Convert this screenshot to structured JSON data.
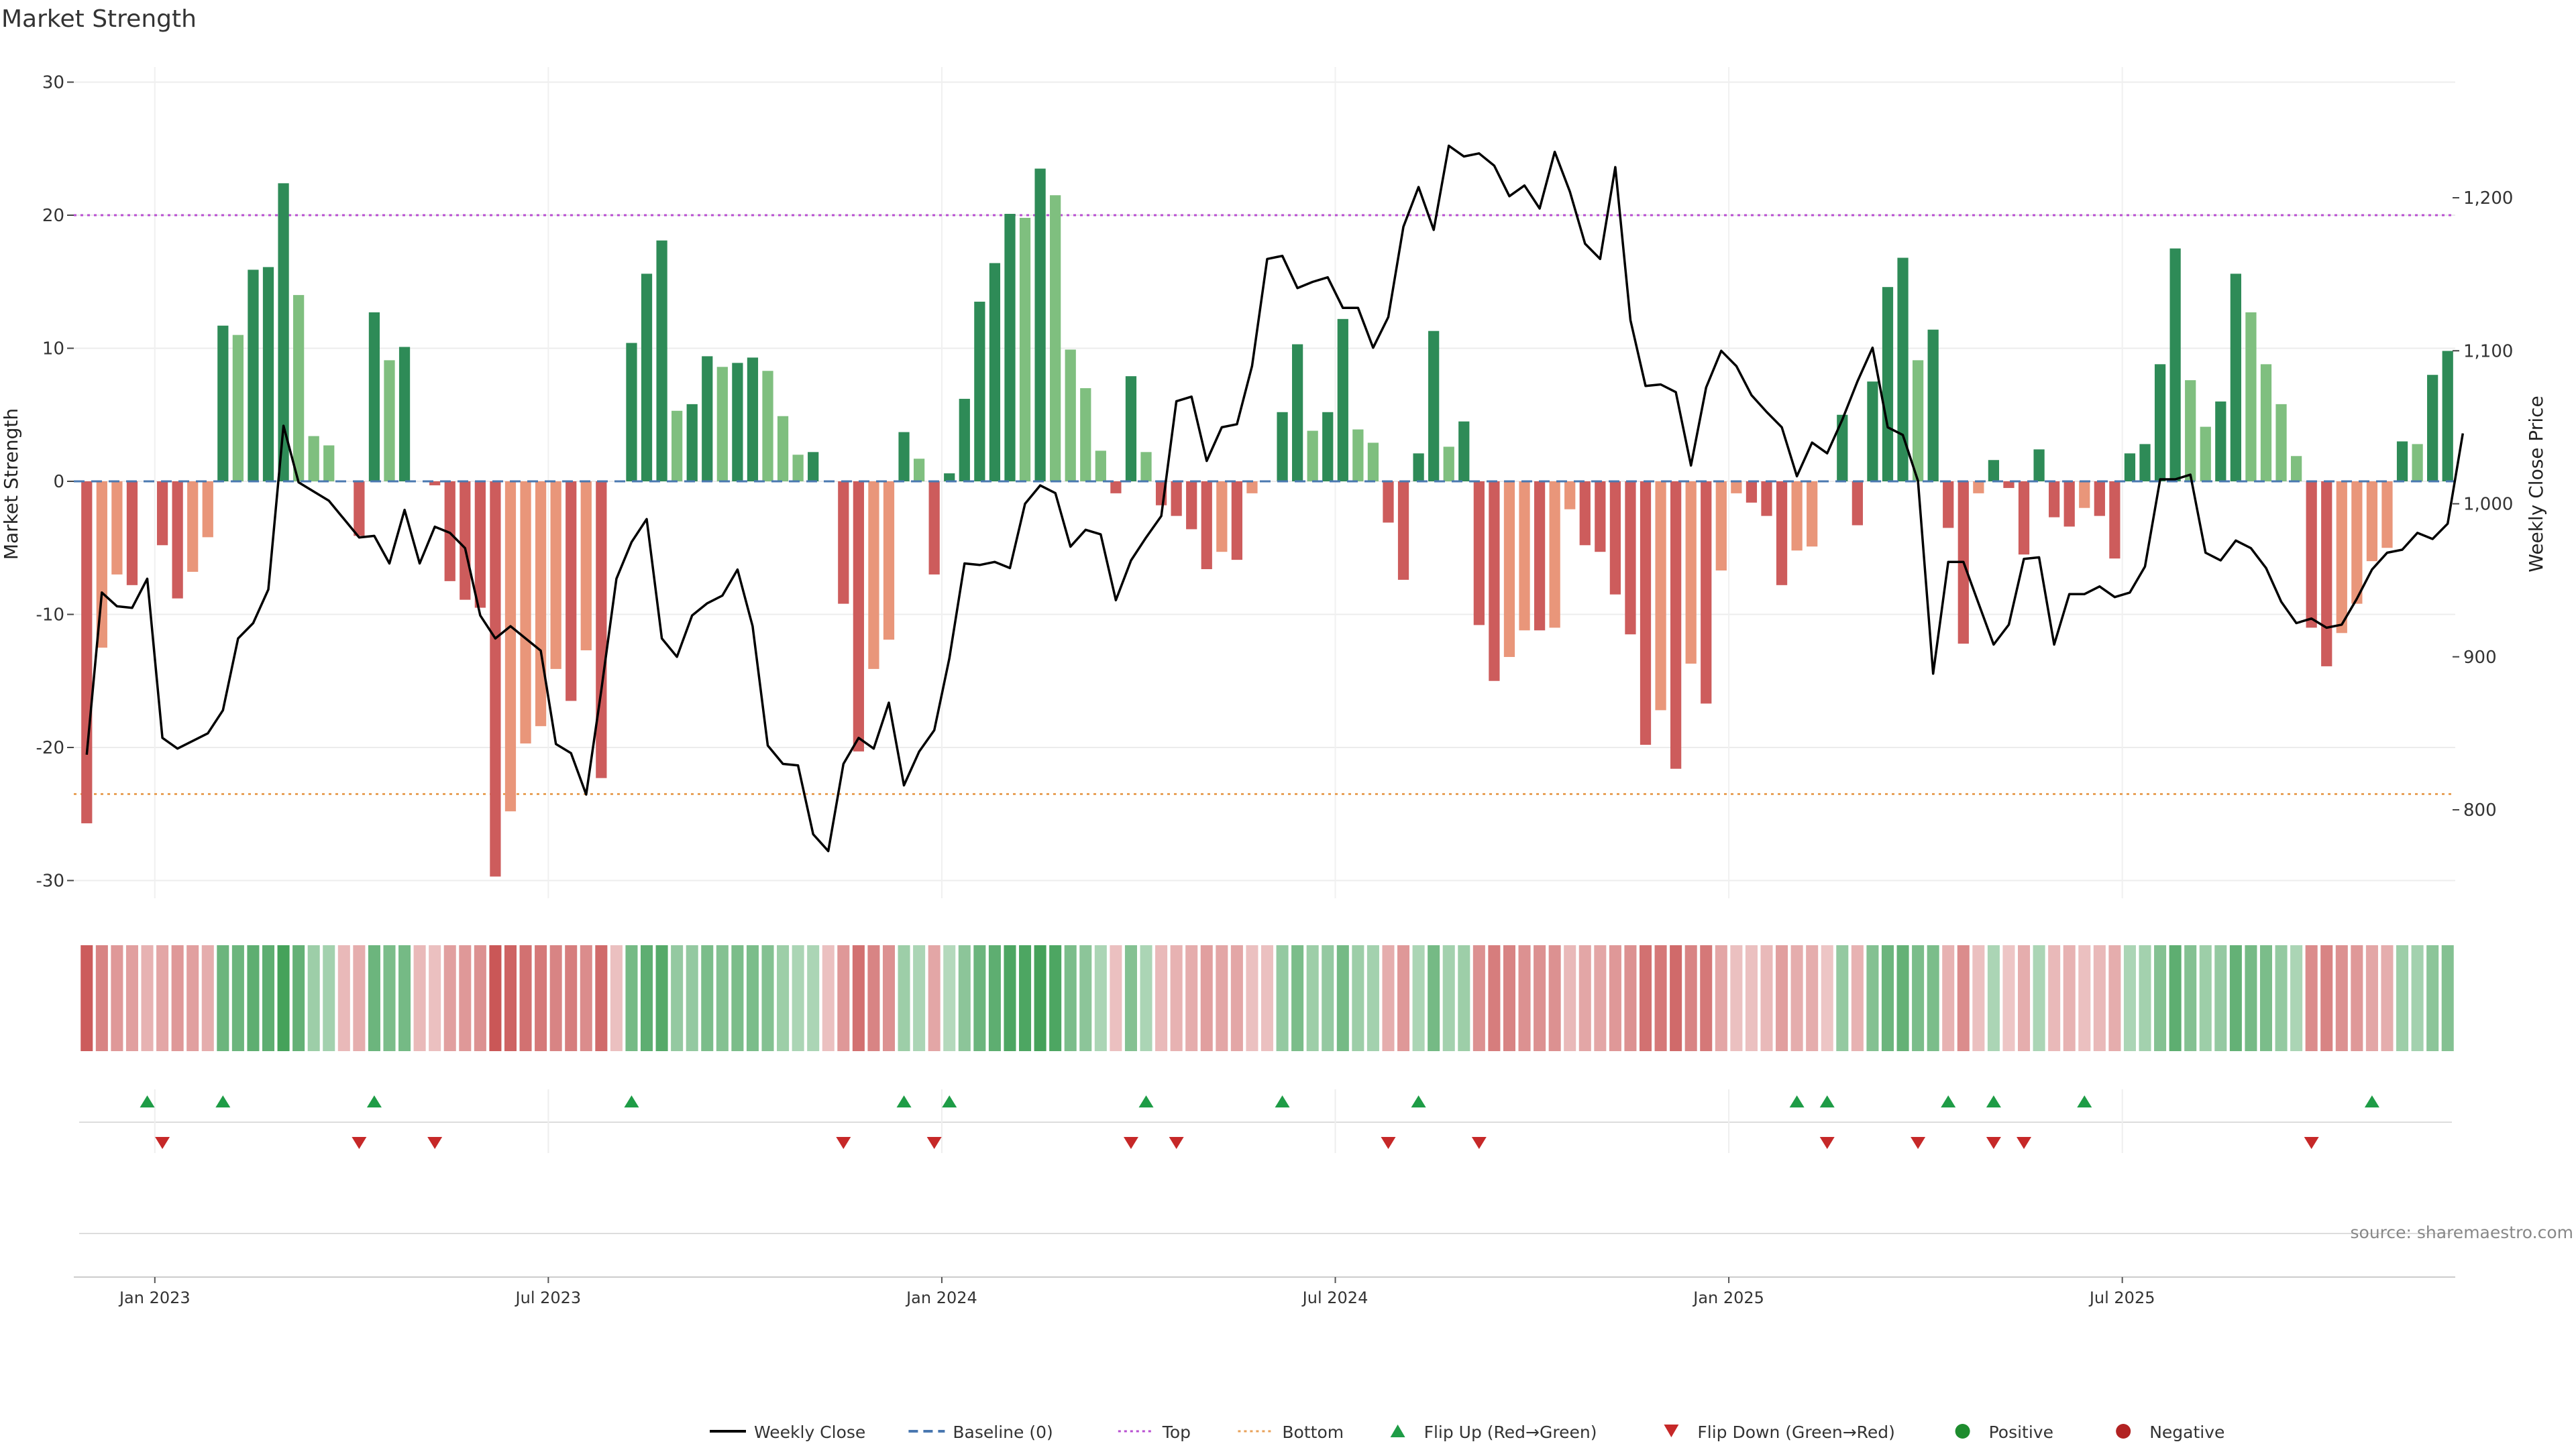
{
  "chart_data": {
    "type": "bar",
    "title": "Market Strength",
    "ylabel_left": "Market Strength",
    "ylabel_right": "Weekly Close Price",
    "source": "source: sharemaestro.com",
    "ylim_left": [
      -33,
      33
    ],
    "yticks_left": [
      30,
      20,
      10,
      0,
      -10,
      -20,
      -30
    ],
    "ylim_right": [
      740,
      1296
    ],
    "yticks_right": [
      {
        "value": 1200,
        "label": "1,200"
      },
      {
        "value": 1100,
        "label": "1,100"
      },
      {
        "value": 1000,
        "label": "1,000"
      },
      {
        "value": 900,
        "label": "900"
      },
      {
        "value": 800,
        "label": "800"
      }
    ],
    "x_start_index_date": "2022-11-28",
    "xticks": [
      {
        "index": 5,
        "label": "Jan 2023"
      },
      {
        "index": 31,
        "label": "Jul 2023"
      },
      {
        "index": 57,
        "label": "Jan 2024"
      },
      {
        "index": 83,
        "label": "Jul 2024"
      },
      {
        "index": 109,
        "label": "Jan 2025"
      },
      {
        "index": 135,
        "label": "Jul 2025"
      }
    ],
    "top_threshold": 20,
    "bottom_threshold": -23.5,
    "strength": [
      -25.7,
      -12.5,
      -7,
      -7.8,
      0,
      -4.8,
      -8.8,
      -6.8,
      -4.2,
      11.7,
      11,
      15.9,
      16.1,
      22.4,
      14,
      3.4,
      2.7,
      0,
      -4.1,
      12.7,
      9.1,
      10.1,
      0,
      -0.3,
      -7.5,
      -8.9,
      -9.5,
      -29.7,
      -24.8,
      -19.7,
      -18.4,
      -14.1,
      -16.5,
      -12.7,
      -22.3,
      0,
      10.4,
      15.6,
      18.1,
      5.3,
      5.8,
      9.4,
      8.6,
      8.9,
      9.3,
      8.3,
      4.9,
      2,
      2.2,
      0,
      -9.2,
      -20.3,
      -14.1,
      -11.9,
      3.7,
      1.7,
      -7,
      0.6,
      6.2,
      13.5,
      16.4,
      20.1,
      19.8,
      23.5,
      21.5,
      9.9,
      7,
      2.3,
      -0.9,
      7.9,
      2.2,
      -1.8,
      -2.6,
      -3.6,
      -6.6,
      -5.3,
      -5.9,
      -0.9,
      0,
      5.2,
      10.3,
      3.8,
      5.2,
      12.2,
      3.9,
      2.9,
      -3.1,
      -7.4,
      2.1,
      11.3,
      2.6,
      4.5,
      -10.8,
      -15,
      -13.2,
      -11.2,
      -11.2,
      -11,
      -2.1,
      -4.8,
      -5.3,
      -8.5,
      -11.5,
      -19.8,
      -17.2,
      -21.6,
      -13.7,
      -16.7,
      -6.7,
      -0.9,
      -1.6,
      -2.6,
      -7.8,
      -5.2,
      -4.9,
      0,
      5,
      -3.3,
      7.5,
      14.6,
      16.8,
      9.1,
      11.4,
      -3.5,
      -12.2,
      -0.9,
      1.6,
      -0.5,
      -5.5,
      2.4,
      -2.7,
      -3.4,
      -2,
      -2.6,
      -5.8,
      2.1,
      2.8,
      8.8,
      17.5,
      7.6,
      4.1,
      6,
      15.6,
      12.7,
      8.8,
      5.8,
      1.9,
      -11,
      -13.9,
      -11.4,
      -9.2,
      -6,
      -5,
      3,
      2.8,
      8,
      9.8
    ],
    "close": [
      836,
      942,
      933,
      932,
      951,
      847,
      840,
      845,
      850,
      865,
      912,
      922,
      944,
      1051,
      1014,
      1008,
      1002,
      990,
      978,
      979,
      961,
      996,
      961,
      985,
      981,
      971,
      927,
      912,
      920,
      912,
      904,
      843,
      837,
      810,
      878,
      951,
      975,
      990,
      912,
      900,
      927,
      935,
      940,
      957,
      920,
      842,
      830,
      829,
      784,
      773,
      830,
      847,
      840,
      870,
      816,
      838,
      852,
      899,
      961,
      960,
      962,
      958,
      1000,
      1012,
      1007,
      972,
      983,
      980,
      937,
      963,
      978,
      992,
      1067,
      1070,
      1028,
      1050,
      1052,
      1090,
      1160,
      1162,
      1141,
      1145,
      1148,
      1128,
      1128,
      1102,
      1122,
      1181,
      1207,
      1179,
      1234,
      1227,
      1229,
      1221,
      1201,
      1208,
      1193,
      1230,
      1204,
      1170,
      1160,
      1220,
      1120,
      1077,
      1078,
      1073,
      1025,
      1076,
      1100,
      1090,
      1071,
      1060,
      1050,
      1018,
      1040,
      1033,
      1055,
      1080,
      1102,
      1050,
      1045,
      1015,
      889,
      962,
      962,
      935,
      908,
      921,
      964,
      965,
      908,
      941,
      941,
      946,
      939,
      942,
      959,
      1016,
      1016,
      1019,
      968,
      963,
      976,
      971,
      958,
      936,
      922,
      925,
      919,
      921,
      938,
      957,
      968,
      970,
      981,
      977,
      987,
      1046
    ],
    "heat_intensity": [
      0.9,
      0.6,
      0.45,
      0.4,
      0.25,
      0.35,
      0.45,
      0.4,
      0.3,
      0.6,
      0.6,
      0.7,
      0.7,
      0.85,
      0.65,
      0.3,
      0.25,
      0.2,
      0.3,
      0.6,
      0.5,
      0.55,
      0.2,
      0.15,
      0.4,
      0.45,
      0.5,
      0.95,
      0.85,
      0.75,
      0.7,
      0.6,
      0.65,
      0.55,
      0.8,
      0.15,
      0.55,
      0.7,
      0.75,
      0.35,
      0.35,
      0.5,
      0.45,
      0.5,
      0.5,
      0.45,
      0.3,
      0.2,
      0.2,
      0.15,
      0.45,
      0.75,
      0.6,
      0.5,
      0.3,
      0.2,
      0.35,
      0.15,
      0.4,
      0.6,
      0.7,
      0.8,
      0.8,
      0.85,
      0.8,
      0.5,
      0.4,
      0.2,
      0.15,
      0.45,
      0.2,
      0.2,
      0.25,
      0.3,
      0.4,
      0.35,
      0.35,
      0.15,
      0.15,
      0.35,
      0.5,
      0.3,
      0.35,
      0.55,
      0.3,
      0.25,
      0.3,
      0.45,
      0.2,
      0.55,
      0.25,
      0.3,
      0.5,
      0.65,
      0.6,
      0.5,
      0.5,
      0.5,
      0.2,
      0.35,
      0.35,
      0.45,
      0.5,
      0.75,
      0.7,
      0.8,
      0.6,
      0.7,
      0.35,
      0.15,
      0.15,
      0.2,
      0.4,
      0.3,
      0.3,
      0.1,
      0.35,
      0.25,
      0.45,
      0.6,
      0.65,
      0.5,
      0.5,
      0.25,
      0.55,
      0.15,
      0.2,
      0.1,
      0.3,
      0.2,
      0.2,
      0.25,
      0.15,
      0.2,
      0.3,
      0.2,
      0.25,
      0.45,
      0.7,
      0.45,
      0.3,
      0.35,
      0.65,
      0.55,
      0.5,
      0.35,
      0.2,
      0.55,
      0.6,
      0.5,
      0.45,
      0.35,
      0.3,
      0.3,
      0.25,
      0.4,
      0.45
    ],
    "flip_up_indices": [
      4,
      9,
      19,
      36,
      54,
      57,
      70,
      79,
      88,
      113,
      115,
      123,
      126,
      132,
      151
    ],
    "flip_down_indices": [
      5,
      18,
      23,
      50,
      56,
      69,
      72,
      86,
      92,
      115,
      121,
      126,
      128,
      147
    ],
    "colors": {
      "strong_green": "#2e8b57",
      "light_green": "#7fbf7f",
      "strong_red": "#cd5c5c",
      "light_red": "#e9967a",
      "line": "#000000",
      "top": "#b84fd1",
      "bottom": "#e8a25a",
      "baseline": "#4a78b0",
      "flip_up": "#1e9c46",
      "flip_down": "#c62828",
      "positive": "#1e8c2e",
      "negative": "#b22222"
    },
    "legend": [
      {
        "label": "Weekly Close",
        "kind": "line"
      },
      {
        "label": "Baseline (0)",
        "kind": "dash"
      },
      {
        "label": "Top",
        "kind": "dot-top"
      },
      {
        "label": "Bottom",
        "kind": "dot-bottom"
      },
      {
        "label": "Flip Up (Red→Green)",
        "kind": "tri-up"
      },
      {
        "label": "Flip Down (Green→Red)",
        "kind": "tri-down"
      },
      {
        "label": "Positive",
        "kind": "circ-pos"
      },
      {
        "label": "Negative",
        "kind": "circ-neg"
      }
    ]
  }
}
